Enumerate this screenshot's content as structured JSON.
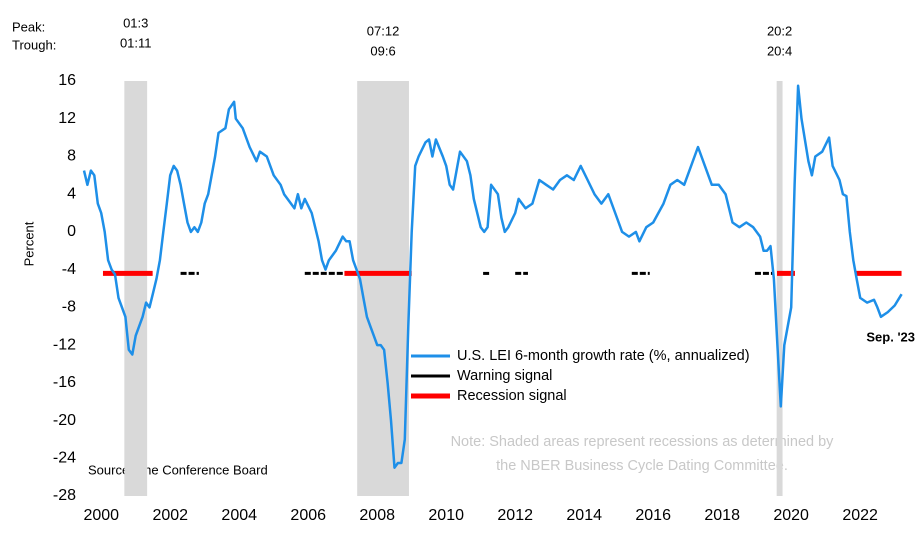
{
  "chart_data": {
    "type": "line",
    "y_label": "Percent",
    "source": "Source: The Conference Board",
    "note": [
      "Note: Shaded areas represent recessions as determined by",
      "the NBER Business Cycle Dating Committee."
    ],
    "end_label": "Sep. '23",
    "peak_label": "Peak:",
    "trough_label": "Trough:",
    "xlim": [
      2000,
      2023.8
    ],
    "ylim": [
      -28,
      16
    ],
    "yticks": [
      -28,
      -24,
      -20,
      -16,
      -12,
      -8,
      -4,
      0,
      4,
      8,
      12,
      16
    ],
    "xticks": [
      {
        "value": 2000.5,
        "label": "2000"
      },
      {
        "value": 2002.5,
        "label": "2002"
      },
      {
        "value": 2004.5,
        "label": "2004"
      },
      {
        "value": 2006.5,
        "label": "2006"
      },
      {
        "value": 2008.5,
        "label": "2008"
      },
      {
        "value": 2010.5,
        "label": "2010"
      },
      {
        "value": 2012.5,
        "label": "2012"
      },
      {
        "value": 2014.5,
        "label": "2014"
      },
      {
        "value": 2016.5,
        "label": "2016"
      },
      {
        "value": 2018.5,
        "label": "2018"
      },
      {
        "value": 2020.5,
        "label": "2020"
      },
      {
        "value": 2022.5,
        "label": "2022"
      }
    ],
    "recessions": [
      {
        "peak": "01:3",
        "trough": "01:11",
        "start": 2001.17,
        "end": 2001.83
      },
      {
        "peak": "07:12",
        "trough": "09:6",
        "start": 2007.92,
        "end": 2009.42
      },
      {
        "peak": "20:2",
        "trough": "20:4",
        "start": 2020.08,
        "end": 2020.25
      }
    ],
    "recession_color": "#d9d9d9",
    "series": [
      {
        "name": "U.S. LEI 6-month growth rate (%, annualized)",
        "color": "#1e8fe8",
        "x": [
          2000.0,
          2000.1,
          2000.2,
          2000.3,
          2000.4,
          2000.5,
          2000.6,
          2000.7,
          2000.8,
          2000.9,
          2001.0,
          2001.2,
          2001.3,
          2001.4,
          2001.5,
          2001.7,
          2001.8,
          2001.9,
          2002.0,
          2002.1,
          2002.2,
          2002.3,
          2002.4,
          2002.5,
          2002.6,
          2002.7,
          2002.8,
          2002.9,
          2003.0,
          2003.1,
          2003.2,
          2003.3,
          2003.4,
          2003.5,
          2003.6,
          2003.8,
          2003.9,
          2004.1,
          2004.2,
          2004.35,
          2004.4,
          2004.6,
          2004.8,
          2005.0,
          2005.1,
          2005.3,
          2005.5,
          2005.7,
          2005.8,
          2006.0,
          2006.1,
          2006.2,
          2006.3,
          2006.4,
          2006.6,
          2006.8,
          2006.9,
          2007.0,
          2007.1,
          2007.3,
          2007.5,
          2007.6,
          2007.7,
          2007.8,
          2008.0,
          2008.1,
          2008.2,
          2008.3,
          2008.4,
          2008.5,
          2008.6,
          2008.7,
          2008.8,
          2008.9,
          2009.0,
          2009.1,
          2009.2,
          2009.3,
          2009.4,
          2009.5,
          2009.6,
          2009.7,
          2009.9,
          2010.0,
          2010.1,
          2010.2,
          2010.4,
          2010.5,
          2010.6,
          2010.7,
          2010.9,
          2011.1,
          2011.2,
          2011.3,
          2011.5,
          2011.6,
          2011.7,
          2011.8,
          2012.0,
          2012.1,
          2012.2,
          2012.3,
          2012.5,
          2012.6,
          2012.8,
          2013.0,
          2013.2,
          2013.4,
          2013.6,
          2013.8,
          2014.0,
          2014.2,
          2014.4,
          2014.6,
          2014.8,
          2015.0,
          2015.2,
          2015.4,
          2015.6,
          2015.8,
          2016.0,
          2016.1,
          2016.3,
          2016.5,
          2016.8,
          2017.0,
          2017.2,
          2017.4,
          2017.6,
          2017.8,
          2018.0,
          2018.2,
          2018.4,
          2018.6,
          2018.8,
          2019.0,
          2019.2,
          2019.4,
          2019.6,
          2019.7,
          2019.8,
          2019.9,
          2020.0,
          2020.1,
          2020.2,
          2020.3,
          2020.5,
          2020.6,
          2020.7,
          2020.8,
          2021.0,
          2021.1,
          2021.2,
          2021.4,
          2021.6,
          2021.7,
          2021.9,
          2022.0,
          2022.1,
          2022.2,
          2022.3,
          2022.4,
          2022.5,
          2022.7,
          2022.9,
          2023.0,
          2023.1,
          2023.3,
          2023.5,
          2023.7
        ],
        "values": [
          6.5,
          5,
          6.5,
          6,
          3,
          2,
          0,
          -3,
          -4,
          -4.5,
          -7,
          -9,
          -12.5,
          -13,
          -11,
          -9,
          -7.5,
          -8,
          -6.5,
          -5,
          -3,
          0,
          3,
          6,
          7,
          6.5,
          5,
          3,
          1,
          0,
          0.5,
          0,
          1,
          3,
          4,
          8,
          10.5,
          11,
          13,
          13.8,
          12,
          11,
          9,
          7.5,
          8.5,
          8,
          6,
          5,
          4,
          3,
          2.5,
          4,
          2.5,
          3.5,
          2,
          -1,
          -3,
          -4,
          -3,
          -2,
          -0.5,
          -1,
          -1,
          -3,
          -5,
          -7,
          -9,
          -10,
          -11,
          -12,
          -12,
          -12.5,
          -16,
          -20,
          -25,
          -24.5,
          -24.5,
          -22,
          -10,
          0,
          7,
          8,
          9.5,
          9.8,
          8,
          9.8,
          8,
          7,
          5,
          4.5,
          8.5,
          7.5,
          6,
          3.5,
          0.5,
          0,
          0.5,
          5,
          4,
          1.5,
          0,
          0.5,
          2,
          3.5,
          2.5,
          3,
          5.5,
          5,
          4.5,
          5.5,
          6,
          5.5,
          7,
          5.5,
          4,
          3,
          4,
          2,
          0,
          -0.5,
          0,
          -1,
          0.5,
          1,
          3,
          5,
          5.5,
          5,
          7,
          9,
          7,
          5,
          5,
          4,
          1,
          0.5,
          1,
          0.5,
          -0.5,
          -2,
          -2,
          -1.5,
          -5,
          -12,
          -18.5,
          -12,
          -8,
          5,
          15.5,
          12,
          7.5,
          6,
          8,
          8.5,
          10,
          7,
          5.5,
          4,
          3.8,
          0,
          -3,
          -5,
          -7,
          -7.5,
          -7.2,
          -8,
          -9,
          -8.5,
          -7.8,
          -6.6
        ]
      }
    ],
    "signals": [
      {
        "name": "Warning signal",
        "color": "#000000",
        "value": -4.4,
        "periods": [
          [
            2002.8,
            2003.33
          ],
          [
            2006.4,
            2007.6
          ],
          [
            2011.57,
            2011.77
          ],
          [
            2012.5,
            2012.87
          ],
          [
            2015.88,
            2016.4
          ],
          [
            2019.45,
            2020.0
          ]
        ]
      },
      {
        "name": "Recession signal",
        "color": "#ff0000",
        "value": -4.4,
        "periods": [
          [
            2000.55,
            2001.99
          ],
          [
            2007.55,
            2009.5
          ],
          [
            2020.09,
            2020.61
          ],
          [
            2022.35,
            2023.7
          ]
        ]
      }
    ]
  }
}
